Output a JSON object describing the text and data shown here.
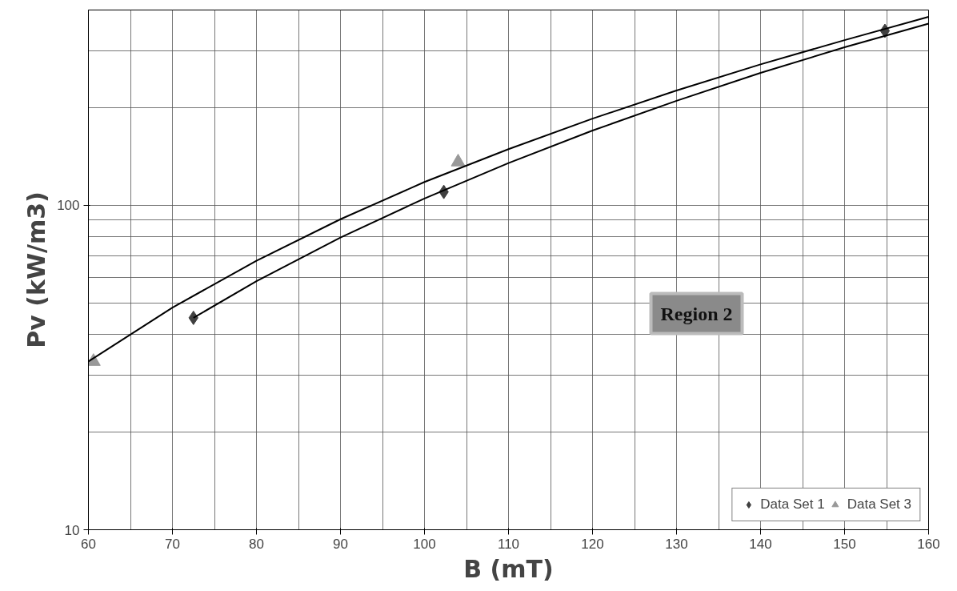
{
  "chart_data": {
    "type": "scatter",
    "xlabel": "B (mT)",
    "ylabel": "Pv (kW/m3)",
    "log": "y",
    "xlim": [
      60,
      160
    ],
    "ylim": [
      10,
      400
    ],
    "xticks": [
      60,
      70,
      80,
      90,
      100,
      110,
      120,
      130,
      140,
      150,
      160
    ],
    "yticks": [
      10,
      100
    ],
    "grid": true,
    "legend": "bottom right",
    "annotations": [
      "Region 2"
    ],
    "series": [
      {
        "name": "Data Set 1",
        "color": "#404040",
        "marker": "diamond",
        "x": [
          72.5,
          102.3,
          154.8
        ],
        "values": [
          45,
          110,
          345
        ]
      },
      {
        "name": "Data Set 3",
        "color": "#999999",
        "marker": "triangle",
        "x": [
          60.6,
          104,
          null
        ],
        "values": [
          33,
          136,
          null
        ]
      },
      {
        "type": "line",
        "color": "#000000",
        "x": [
          60,
          70,
          80,
          90,
          100,
          110,
          120,
          130,
          140,
          150,
          160
        ],
        "values": [
          33,
          48.4,
          67.5,
          90.6,
          118,
          149,
          185,
          226,
          272,
          323,
          381
        ]
      },
      {
        "type": "line",
        "color": "#000000",
        "x": [
          72.5,
          80,
          90,
          100,
          110,
          120,
          130,
          140,
          150,
          160
        ],
        "values": [
          45,
          58.4,
          79.6,
          105,
          135,
          170,
          210,
          256,
          307,
          363
        ]
      }
    ]
  }
}
